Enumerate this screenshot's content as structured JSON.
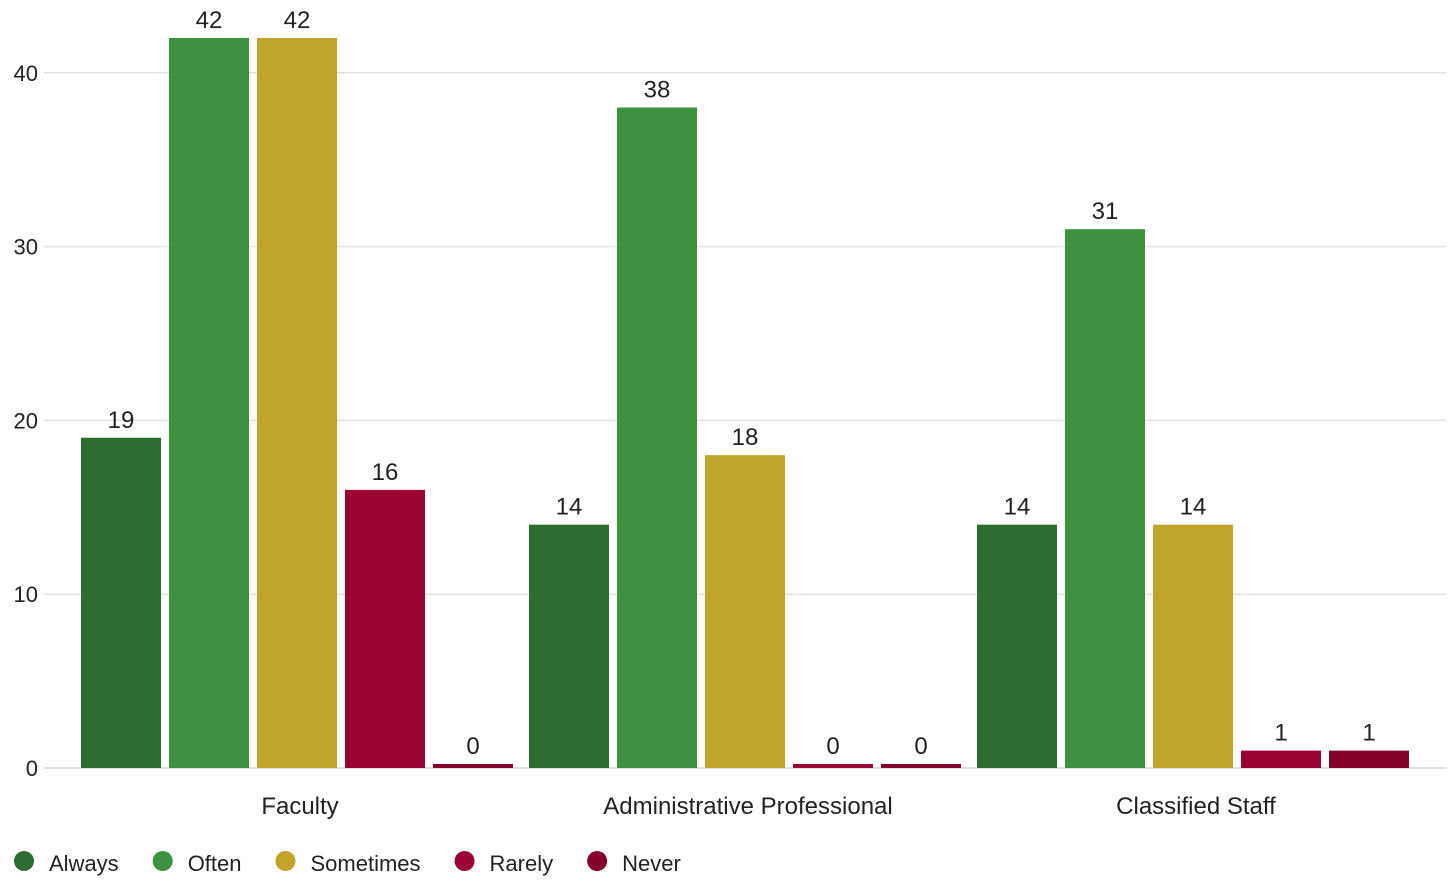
{
  "chart_data": {
    "type": "bar",
    "categories": [
      "Faculty",
      "Administrative Professional",
      "Classified Staff"
    ],
    "series": [
      {
        "name": "Always",
        "color": "#2e6e31",
        "values": [
          19,
          14,
          14
        ]
      },
      {
        "name": "Often",
        "color": "#3e9140",
        "values": [
          42,
          38,
          31
        ]
      },
      {
        "name": "Sometimes",
        "color": "#c1a42a",
        "values": [
          42,
          18,
          14
        ]
      },
      {
        "name": "Rarely",
        "color": "#9b0332",
        "values": [
          16,
          0,
          1
        ]
      },
      {
        "name": "Never",
        "color": "#85032b",
        "values": [
          0,
          0,
          1
        ]
      }
    ],
    "ylim": [
      0,
      42
    ],
    "yticks": [
      0,
      10,
      20,
      30,
      40
    ],
    "grid": true,
    "legend_position": "bottom-left",
    "title": "",
    "xlabel": "",
    "ylabel": ""
  }
}
